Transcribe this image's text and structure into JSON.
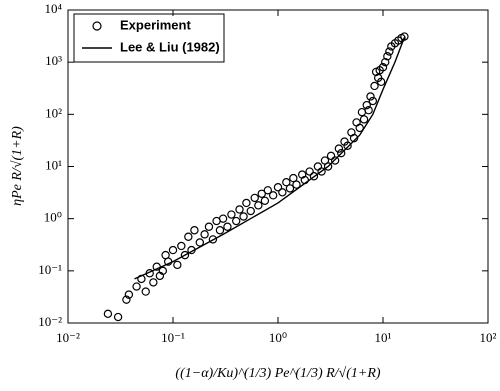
{
  "chart_data": {
    "type": "scatter",
    "x_label": "((1−α)/Ku)^(1/3) Pe^(1/3) R/√(1+R)",
    "y_label": "ηPe R/√(1+R)",
    "xscale": "log",
    "yscale": "log",
    "legend": "upper-left",
    "xlim": [
      0.01,
      100
    ],
    "ylim": [
      0.01,
      10000
    ],
    "xticks": [
      {
        "value": 0.01,
        "label": "10⁻²"
      },
      {
        "value": 0.1,
        "label": "10⁻¹"
      },
      {
        "value": 1,
        "label": "10⁰"
      },
      {
        "value": 10,
        "label": "10¹"
      },
      {
        "value": 100,
        "label": "10²"
      }
    ],
    "yticks": [
      {
        "value": 0.01,
        "label": "10⁻²"
      },
      {
        "value": 0.1,
        "label": "10⁻¹"
      },
      {
        "value": 1,
        "label": "10⁰"
      },
      {
        "value": 10,
        "label": "10¹"
      },
      {
        "value": 100,
        "label": "10²"
      },
      {
        "value": 1000,
        "label": "10³"
      },
      {
        "value": 10000,
        "label": "10⁴"
      }
    ],
    "series": [
      {
        "name": "Experiment",
        "type": "scatter",
        "color": "#000000",
        "x": [
          0.024,
          0.03,
          0.036,
          0.038,
          0.045,
          0.05,
          0.055,
          0.06,
          0.065,
          0.07,
          0.075,
          0.08,
          0.085,
          0.09,
          0.1,
          0.11,
          0.12,
          0.13,
          0.14,
          0.15,
          0.16,
          0.18,
          0.2,
          0.22,
          0.24,
          0.26,
          0.28,
          0.3,
          0.33,
          0.36,
          0.4,
          0.43,
          0.47,
          0.5,
          0.55,
          0.6,
          0.65,
          0.7,
          0.75,
          0.8,
          0.9,
          1.0,
          1.1,
          1.2,
          1.3,
          1.4,
          1.5,
          1.7,
          1.8,
          2.0,
          2.2,
          2.4,
          2.6,
          2.8,
          3.0,
          3.2,
          3.5,
          3.8,
          4.0,
          4.3,
          4.6,
          5.0,
          5.3,
          5.6,
          6.0,
          6.3,
          6.6,
          7.0,
          7.3,
          7.6,
          8.0,
          8.3,
          8.6,
          9.0,
          9.3,
          9.6,
          10,
          10.5,
          11,
          11.5,
          12,
          13,
          14,
          15,
          16
        ],
        "values": [
          0.015,
          0.013,
          0.028,
          0.035,
          0.05,
          0.07,
          0.04,
          0.09,
          0.06,
          0.12,
          0.08,
          0.1,
          0.2,
          0.15,
          0.25,
          0.13,
          0.3,
          0.2,
          0.45,
          0.25,
          0.6,
          0.35,
          0.5,
          0.7,
          0.4,
          0.9,
          0.6,
          1.0,
          0.7,
          1.2,
          0.9,
          1.5,
          1.1,
          2.0,
          1.4,
          2.5,
          1.8,
          3.0,
          2.2,
          3.5,
          2.8,
          4.0,
          3.2,
          5.0,
          3.8,
          6.0,
          4.5,
          7.0,
          5.5,
          8.0,
          6.5,
          10,
          8,
          13,
          10,
          16,
          13,
          22,
          18,
          30,
          25,
          45,
          35,
          70,
          55,
          110,
          80,
          150,
          120,
          220,
          180,
          350,
          650,
          500,
          700,
          420,
          800,
          1000,
          1300,
          1600,
          2000,
          2300,
          2600,
          2900,
          3100
        ]
      },
      {
        "name": "Lee & Liu (1982)",
        "type": "line",
        "color": "#000000",
        "x": [
          0.043,
          0.1,
          0.3,
          1,
          3,
          6,
          8,
          10,
          13,
          16
        ],
        "values": [
          0.07,
          0.15,
          0.5,
          2,
          10,
          40,
          100,
          300,
          1000,
          3000
        ]
      }
    ]
  }
}
